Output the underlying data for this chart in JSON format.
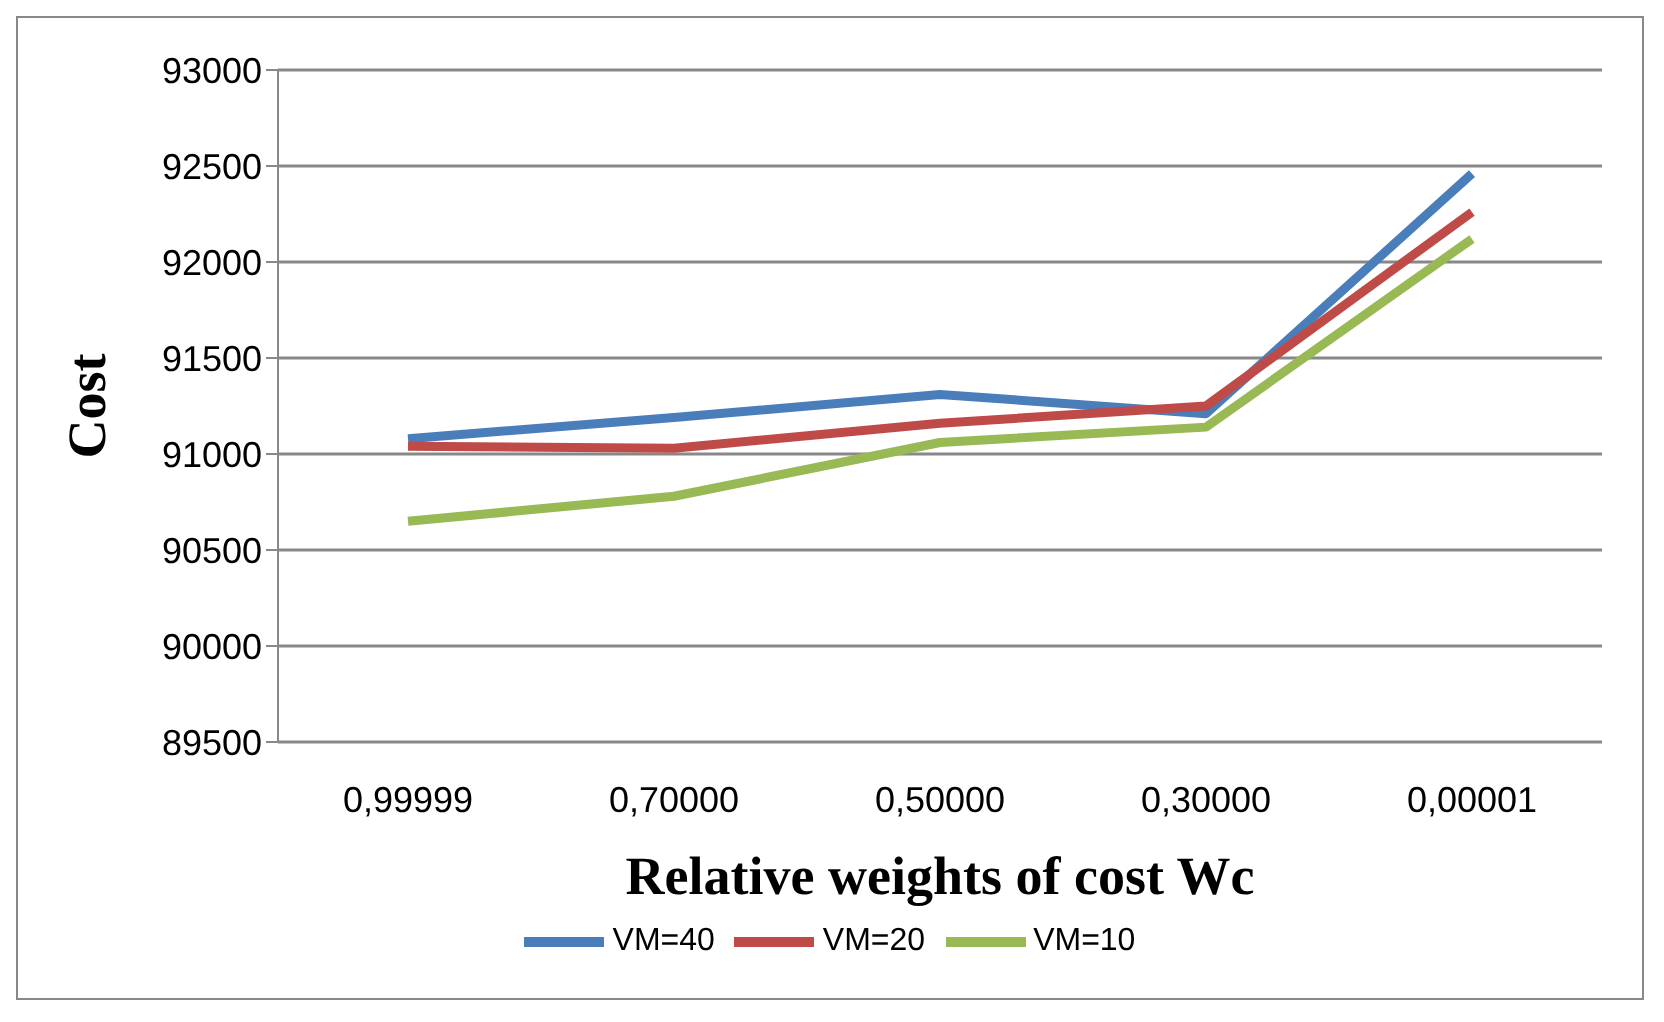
{
  "chart_data": {
    "type": "line",
    "xlabel": "Relative weights of cost  Wc",
    "ylabel": "Cost",
    "categories": [
      "0,99999",
      "0,70000",
      "0,50000",
      "0,30000",
      "0,00001"
    ],
    "series": [
      {
        "name": "VM=40",
        "color": "#4a7ebb",
        "values": [
          91080,
          91190,
          91310,
          91210,
          92460
        ]
      },
      {
        "name": "VM=20",
        "color": "#be4b48",
        "values": [
          91040,
          91030,
          91160,
          91250,
          92260
        ]
      },
      {
        "name": "VM=10",
        "color": "#98b954",
        "values": [
          90650,
          90780,
          91060,
          91140,
          92120
        ]
      }
    ],
    "ylim": [
      89500,
      93000
    ],
    "yticks": [
      89500,
      90000,
      90500,
      91000,
      91500,
      92000,
      92500,
      93000
    ],
    "grid": "y",
    "legend": "bottom",
    "marker": "none",
    "line_style": "solid"
  }
}
